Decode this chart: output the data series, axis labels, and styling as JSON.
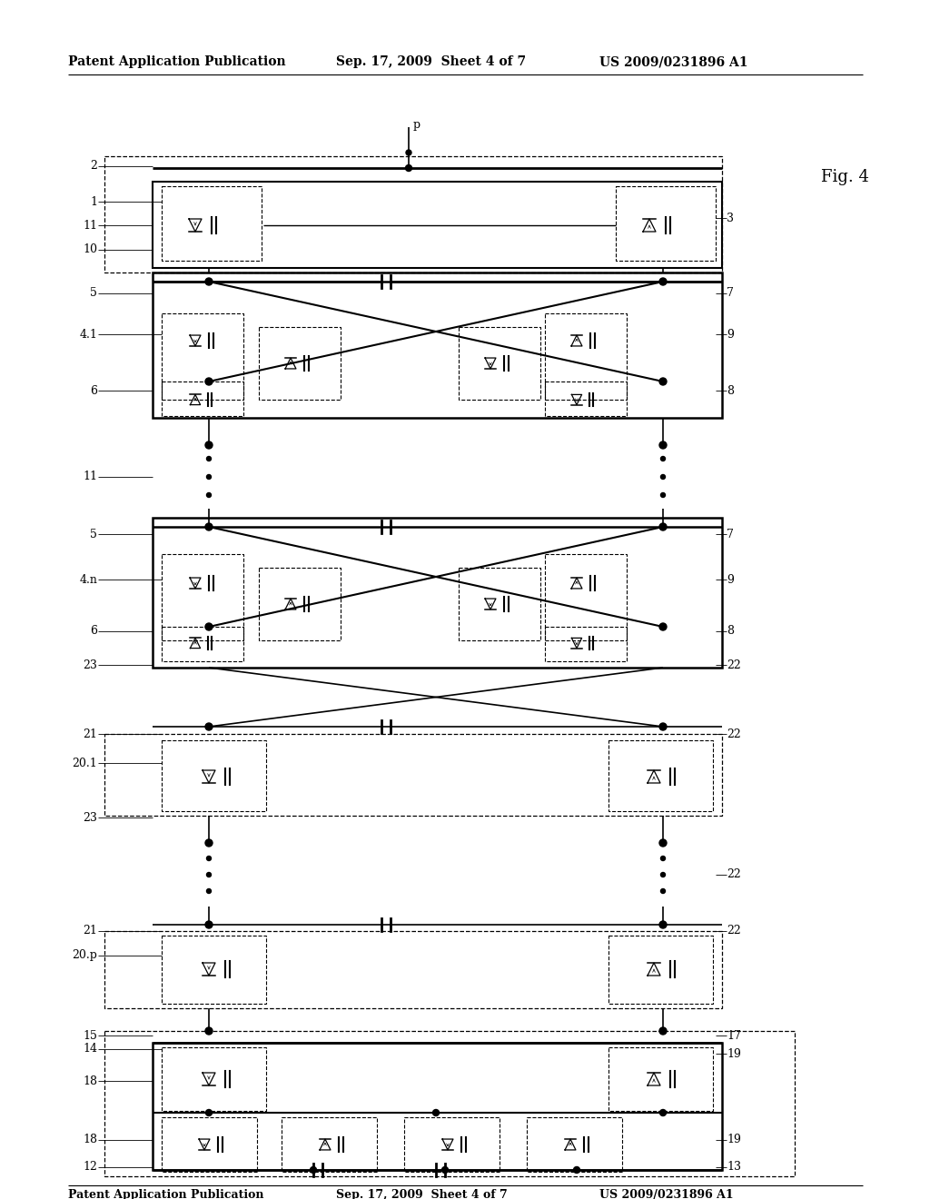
{
  "bg_color": "#ffffff",
  "line_color": "#000000",
  "header_text": "Patent Application Publication",
  "header_date": "Sep. 17, 2009  Sheet 4 of 7",
  "header_patent": "US 2009/0231896 A1",
  "fig_label": "Fig. 4"
}
